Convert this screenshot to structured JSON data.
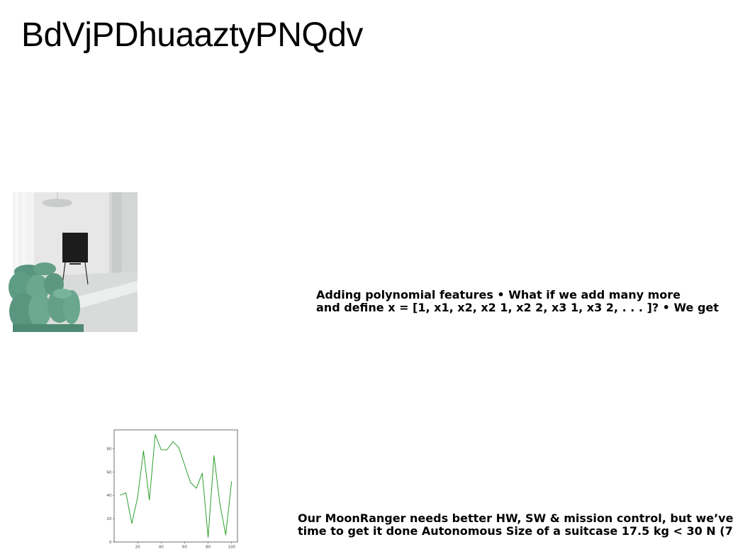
{
  "title": "BdVjPDhuaaztyPNQdv",
  "text_block_1": {
    "lines": [
      "Adding polynomial features • What if we add many more",
      "and define x = [1, x1, x2, x2 1, x2 2, x3 1, x3 2, . . . ]? • We get"
    ]
  },
  "text_block_2": {
    "lines": [
      "Our MoonRanger needs better HW, SW & mission control, but we’ve",
      "time to get it done Autonomous Size of a suitcase 17.5 kg < 30 N (7"
    ]
  },
  "image": {
    "icon": "interior-photo-green-sofa",
    "colors": {
      "wall": "#e6e7e6",
      "floor": "#d9dbda",
      "sofa": "#5f9c86",
      "panel": "#1c1c1c"
    }
  },
  "chart_data": {
    "type": "line",
    "x": [
      5,
      10,
      15,
      20,
      25,
      30,
      35,
      40,
      45,
      50,
      55,
      60,
      65,
      70,
      75,
      80,
      85,
      90,
      95,
      100
    ],
    "values": [
      40,
      42,
      16,
      38,
      78,
      36,
      92,
      79,
      79,
      86,
      81,
      66,
      51,
      46,
      59,
      4,
      74,
      33,
      6,
      52
    ],
    "xticks": [
      "20",
      "40",
      "60",
      "80",
      "100"
    ],
    "yticks": [
      "0",
      "20",
      "40",
      "60",
      "80"
    ],
    "xlim": [
      0,
      105
    ],
    "ylim": [
      0,
      96
    ],
    "color": "#2ca02c",
    "grid": false
  }
}
